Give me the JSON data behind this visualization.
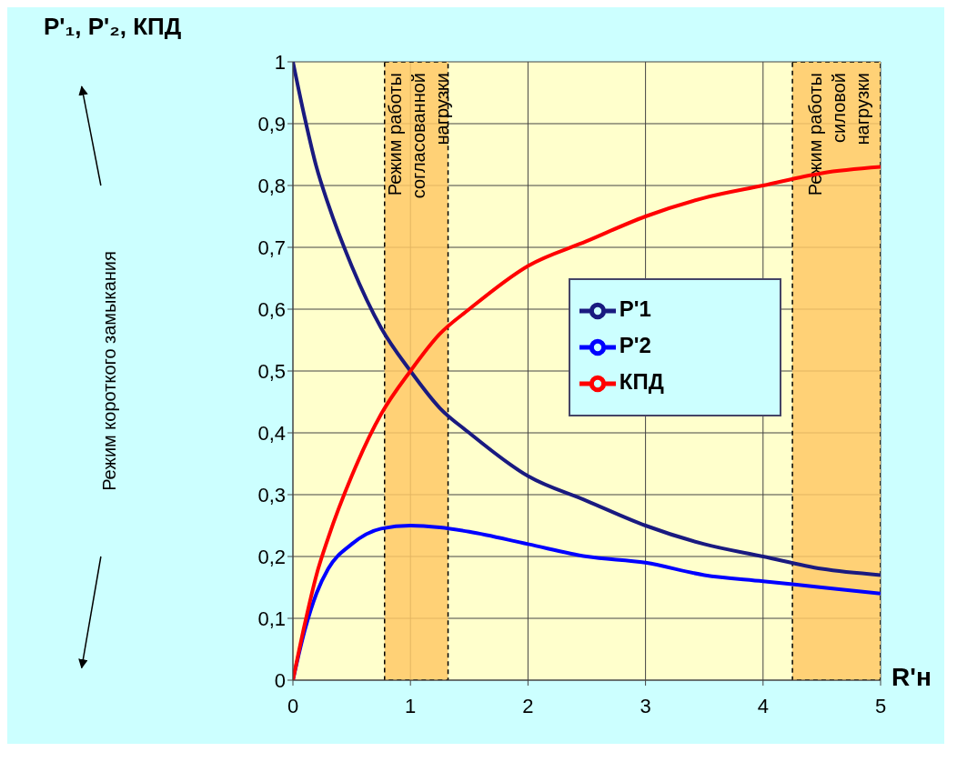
{
  "chart_data": {
    "type": "line",
    "ylabel": "P'₁, P'₂, КПД",
    "xlabel": "R'н",
    "x": [
      0,
      0.1,
      0.2,
      0.3,
      0.5,
      0.75,
      1,
      1.25,
      1.5,
      2,
      2.5,
      3,
      3.5,
      4,
      4.5,
      5
    ],
    "series": [
      {
        "name": "P'1",
        "color": "#1a1a80",
        "values": [
          1,
          0.91,
          0.83,
          0.77,
          0.67,
          0.57,
          0.5,
          0.44,
          0.4,
          0.33,
          0.29,
          0.25,
          0.22,
          0.2,
          0.18,
          0.17
        ]
      },
      {
        "name": "P'2",
        "color": "#0000ff",
        "values": [
          0,
          0.08,
          0.14,
          0.18,
          0.22,
          0.245,
          0.25,
          0.247,
          0.24,
          0.22,
          0.2,
          0.19,
          0.17,
          0.16,
          0.15,
          0.14
        ]
      },
      {
        "name": "КПД",
        "color": "#ff0000",
        "values": [
          0,
          0.09,
          0.17,
          0.23,
          0.33,
          0.43,
          0.5,
          0.56,
          0.6,
          0.67,
          0.71,
          0.75,
          0.78,
          0.8,
          0.82,
          0.83
        ]
      }
    ],
    "xlim": [
      0,
      5
    ],
    "xticks": [
      0,
      1,
      2,
      3,
      4,
      5
    ],
    "ylim": [
      0,
      1
    ],
    "yticks": [
      0,
      {
        "value": 0.1,
        "label": "0,1"
      },
      {
        "value": 0.2,
        "label": "0,2"
      },
      {
        "value": 0.3,
        "label": "0,3"
      },
      {
        "value": 0.4,
        "label": "0,4"
      },
      {
        "value": 0.5,
        "label": "0,5"
      },
      {
        "value": 0.6,
        "label": "0,6"
      },
      {
        "value": 0.7,
        "label": "0,7"
      },
      {
        "value": 0.8,
        "label": "0,8"
      },
      {
        "value": 0.9,
        "label": "0,9"
      },
      1
    ],
    "bands": [
      {
        "axis": "x",
        "from": 0.78,
        "to": 1.32,
        "label": "Режим работы согласованной нагрузки",
        "color": "#ffc966"
      },
      {
        "axis": "x",
        "from": 4.25,
        "to": 5,
        "label": "Режим работы силовой нагрузки",
        "color": "#ffc966"
      }
    ],
    "annotations": [
      "Режим короткого замыкания"
    ],
    "grid": true,
    "legend": "right",
    "marker": "none",
    "line_style": "solid"
  }
}
